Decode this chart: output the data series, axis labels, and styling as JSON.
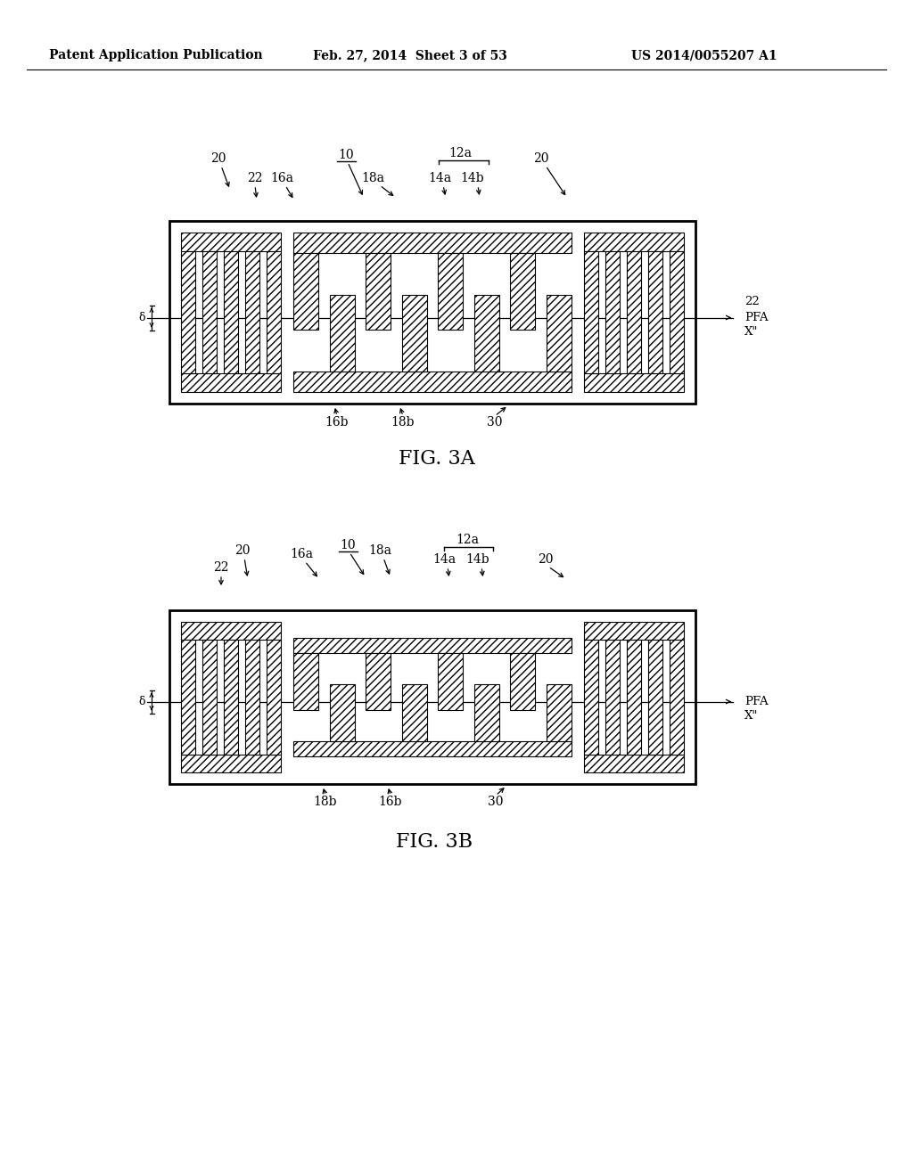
{
  "bg_color": "#ffffff",
  "header_left": "Patent Application Publication",
  "header_center": "Feb. 27, 2014  Sheet 3 of 53",
  "header_right": "US 2014/0055207 A1",
  "fig3a_title": "FIG. 3A",
  "fig3b_title": "FIG. 3B",
  "text_color": "#000000",
  "line_color": "#000000",
  "hatch_pattern": "////"
}
